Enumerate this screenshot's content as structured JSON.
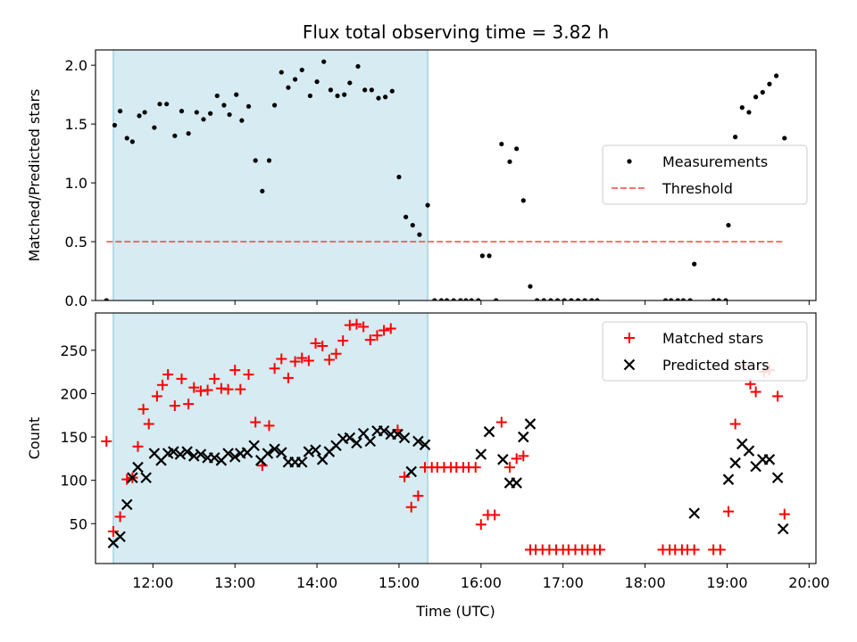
{
  "chart_data": [
    {
      "type": "scatter",
      "title": "Flux total observing time = 3.82 h",
      "xlabel": "",
      "ylabel": "Matched/Predicted stars",
      "x_range": [
        "11:18",
        "20:05"
      ],
      "ylim": [
        0,
        2.13
      ],
      "y_ticks": [
        "0.0",
        "0.5",
        "1.0",
        "1.5",
        "2.0"
      ],
      "x_ticks": [
        "12:00",
        "13:00",
        "14:00",
        "15:00",
        "16:00",
        "17:00",
        "18:00",
        "19:00",
        "20:00"
      ],
      "x_ticklabels_visible": false,
      "shaded_interval": {
        "start": "11:31",
        "end": "15:21"
      },
      "legend": {
        "position": "center-right",
        "entries": [
          "Measurements",
          "Threshold"
        ]
      },
      "threshold": {
        "name": "Threshold",
        "value": 0.5,
        "x_start": "11:26",
        "x_end": "19:41"
      },
      "series": [
        {
          "name": "Measurements",
          "points": [
            [
              "11:26",
              0.0
            ],
            [
              "11:32",
              1.49
            ],
            [
              "11:36",
              1.61
            ],
            [
              "11:41",
              1.38
            ],
            [
              "11:45",
              1.35
            ],
            [
              "11:50",
              1.57
            ],
            [
              "11:54",
              1.6
            ],
            [
              "12:01",
              1.47
            ],
            [
              "12:05",
              1.67
            ],
            [
              "12:10",
              1.67
            ],
            [
              "12:16",
              1.4
            ],
            [
              "12:21",
              1.61
            ],
            [
              "12:26",
              1.42
            ],
            [
              "12:32",
              1.6
            ],
            [
              "12:37",
              1.54
            ],
            [
              "12:42",
              1.59
            ],
            [
              "12:47",
              1.74
            ],
            [
              "12:52",
              1.66
            ],
            [
              "12:56",
              1.58
            ],
            [
              "13:01",
              1.75
            ],
            [
              "13:05",
              1.53
            ],
            [
              "13:10",
              1.65
            ],
            [
              "13:15",
              1.19
            ],
            [
              "13:20",
              0.93
            ],
            [
              "13:25",
              1.19
            ],
            [
              "13:29",
              1.66
            ],
            [
              "13:34",
              1.94
            ],
            [
              "13:39",
              1.81
            ],
            [
              "13:44",
              1.88
            ],
            [
              "13:49",
              1.96
            ],
            [
              "13:55",
              1.74
            ],
            [
              "14:00",
              1.86
            ],
            [
              "14:05",
              2.03
            ],
            [
              "14:10",
              1.79
            ],
            [
              "14:15",
              1.74
            ],
            [
              "14:20",
              1.75
            ],
            [
              "14:24",
              1.85
            ],
            [
              "14:30",
              1.99
            ],
            [
              "14:35",
              1.79
            ],
            [
              "14:40",
              1.79
            ],
            [
              "14:45",
              1.72
            ],
            [
              "14:50",
              1.73
            ],
            [
              "14:55",
              1.78
            ],
            [
              "15:00",
              1.05
            ],
            [
              "15:05",
              0.71
            ],
            [
              "15:10",
              0.64
            ],
            [
              "15:15",
              0.56
            ],
            [
              "15:21",
              0.81
            ],
            [
              "15:26",
              0.0
            ],
            [
              "15:31",
              0.0
            ],
            [
              "15:35",
              0.0
            ],
            [
              "15:40",
              0.0
            ],
            [
              "15:45",
              0.0
            ],
            [
              "15:49",
              0.0
            ],
            [
              "15:53",
              0.0
            ],
            [
              "15:58",
              0.0
            ],
            [
              "16:01",
              0.38
            ],
            [
              "16:06",
              0.38
            ],
            [
              "16:11",
              0.0
            ],
            [
              "16:15",
              1.33
            ],
            [
              "16:21",
              1.18
            ],
            [
              "16:26",
              1.29
            ],
            [
              "16:31",
              0.85
            ],
            [
              "16:36",
              0.12
            ],
            [
              "16:41",
              0.0
            ],
            [
              "16:46",
              0.0
            ],
            [
              "16:51",
              0.0
            ],
            [
              "16:56",
              0.0
            ],
            [
              "17:01",
              0.0
            ],
            [
              "17:06",
              0.0
            ],
            [
              "17:11",
              0.0
            ],
            [
              "17:16",
              0.0
            ],
            [
              "17:21",
              0.0
            ],
            [
              "17:25",
              0.0
            ],
            [
              "18:15",
              0.0
            ],
            [
              "18:19",
              0.0
            ],
            [
              "18:24",
              0.0
            ],
            [
              "18:28",
              0.0
            ],
            [
              "18:33",
              0.0
            ],
            [
              "18:36",
              0.31
            ],
            [
              "18:50",
              0.0
            ],
            [
              "18:54",
              0.0
            ],
            [
              "18:59",
              0.0
            ],
            [
              "19:01",
              0.64
            ],
            [
              "19:06",
              1.39
            ],
            [
              "19:11",
              1.64
            ],
            [
              "19:16",
              1.6
            ],
            [
              "19:21",
              1.73
            ],
            [
              "19:26",
              1.77
            ],
            [
              "19:31",
              1.84
            ],
            [
              "19:36",
              1.91
            ],
            [
              "19:42",
              1.38
            ]
          ]
        }
      ]
    },
    {
      "type": "scatter",
      "title": "",
      "xlabel": "Time (UTC)",
      "ylabel": "Count",
      "x_range": [
        "11:18",
        "20:05"
      ],
      "ylim": [
        4,
        293
      ],
      "y_ticks": [
        "50",
        "100",
        "150",
        "200",
        "250"
      ],
      "x_ticks": [
        "12:00",
        "13:00",
        "14:00",
        "15:00",
        "16:00",
        "17:00",
        "18:00",
        "19:00",
        "20:00"
      ],
      "shaded_interval": {
        "start": "11:31",
        "end": "15:21"
      },
      "legend": {
        "position": "top-right",
        "entries": [
          "Matched stars",
          "Predicted stars"
        ]
      },
      "series": [
        {
          "name": "Matched stars",
          "color": "#ff0000",
          "marker": "plus",
          "points": [
            [
              "11:26",
              145
            ],
            [
              "11:31",
              41
            ],
            [
              "11:36",
              58
            ],
            [
              "11:41",
              101
            ],
            [
              "11:45",
              103
            ],
            [
              "11:49",
              139
            ],
            [
              "11:53",
              182
            ],
            [
              "11:57",
              165
            ],
            [
              "12:03",
              197
            ],
            [
              "12:07",
              210
            ],
            [
              "12:11",
              222
            ],
            [
              "12:16",
              186
            ],
            [
              "12:21",
              217
            ],
            [
              "12:26",
              188
            ],
            [
              "12:30",
              207
            ],
            [
              "12:35",
              203
            ],
            [
              "12:40",
              204
            ],
            [
              "12:45",
              217
            ],
            [
              "12:50",
              206
            ],
            [
              "12:55",
              205
            ],
            [
              "13:00",
              227
            ],
            [
              "13:04",
              205
            ],
            [
              "13:10",
              222
            ],
            [
              "13:15",
              167
            ],
            [
              "13:20",
              117
            ],
            [
              "13:25",
              163
            ],
            [
              "13:29",
              229
            ],
            [
              "13:34",
              240
            ],
            [
              "13:39",
              218
            ],
            [
              "13:44",
              237
            ],
            [
              "13:49",
              241
            ],
            [
              "13:54",
              238
            ],
            [
              "13:59",
              258
            ],
            [
              "14:04",
              255
            ],
            [
              "14:09",
              239
            ],
            [
              "14:14",
              246
            ],
            [
              "14:19",
              261
            ],
            [
              "14:24",
              279
            ],
            [
              "14:29",
              280
            ],
            [
              "14:34",
              277
            ],
            [
              "14:39",
              262
            ],
            [
              "14:44",
              267
            ],
            [
              "14:49",
              273
            ],
            [
              "14:54",
              275
            ],
            [
              "14:59",
              158
            ],
            [
              "15:04",
              104
            ],
            [
              "15:09",
              69
            ],
            [
              "15:14",
              82
            ],
            [
              "15:19",
              115
            ],
            [
              "15:24",
              115
            ],
            [
              "15:28",
              115
            ],
            [
              "15:33",
              115
            ],
            [
              "15:38",
              115
            ],
            [
              "15:42",
              115
            ],
            [
              "15:47",
              115
            ],
            [
              "15:51",
              115
            ],
            [
              "15:56",
              115
            ],
            [
              "16:00",
              49
            ],
            [
              "16:05",
              60
            ],
            [
              "16:10",
              60
            ],
            [
              "16:15",
              167
            ],
            [
              "16:21",
              115
            ],
            [
              "16:26",
              125
            ],
            [
              "16:31",
              128
            ],
            [
              "16:36",
              20
            ],
            [
              "16:40",
              20
            ],
            [
              "16:45",
              20
            ],
            [
              "16:50",
              20
            ],
            [
              "16:55",
              20
            ],
            [
              "17:00",
              20
            ],
            [
              "17:04",
              20
            ],
            [
              "17:09",
              20
            ],
            [
              "17:14",
              20
            ],
            [
              "17:18",
              20
            ],
            [
              "17:23",
              20
            ],
            [
              "17:27",
              20
            ],
            [
              "18:13",
              20
            ],
            [
              "18:18",
              20
            ],
            [
              "18:22",
              20
            ],
            [
              "18:27",
              20
            ],
            [
              "18:31",
              20
            ],
            [
              "18:36",
              20
            ],
            [
              "18:50",
              20
            ],
            [
              "18:55",
              20
            ],
            [
              "19:01",
              64
            ],
            [
              "19:06",
              165
            ],
            [
              "19:12",
              232
            ],
            [
              "19:17",
              211
            ],
            [
              "19:21",
              202
            ],
            [
              "19:27",
              225
            ],
            [
              "19:31",
              227
            ],
            [
              "19:37",
              197
            ],
            [
              "19:42",
              61
            ]
          ]
        },
        {
          "name": "Predicted stars",
          "color": "#000000",
          "marker": "x",
          "points": [
            [
              "11:31",
              28
            ],
            [
              "11:36",
              35
            ],
            [
              "11:41",
              72
            ],
            [
              "11:45",
              103
            ],
            [
              "11:49",
              115
            ],
            [
              "11:55",
              103
            ],
            [
              "12:01",
              131
            ],
            [
              "12:06",
              123
            ],
            [
              "12:11",
              131
            ],
            [
              "12:15",
              133
            ],
            [
              "12:20",
              130
            ],
            [
              "12:25",
              133
            ],
            [
              "12:30",
              128
            ],
            [
              "12:35",
              130
            ],
            [
              "12:40",
              126
            ],
            [
              "12:45",
              126
            ],
            [
              "12:50",
              123
            ],
            [
              "12:55",
              131
            ],
            [
              "13:00",
              127
            ],
            [
              "13:04",
              131
            ],
            [
              "13:09",
              132
            ],
            [
              "13:14",
              140
            ],
            [
              "13:19",
              123
            ],
            [
              "13:24",
              131
            ],
            [
              "13:29",
              136
            ],
            [
              "13:34",
              132
            ],
            [
              "13:39",
              121
            ],
            [
              "13:44",
              121
            ],
            [
              "13:49",
              121
            ],
            [
              "13:54",
              133
            ],
            [
              "13:59",
              135
            ],
            [
              "14:04",
              124
            ],
            [
              "14:09",
              133
            ],
            [
              "14:14",
              140
            ],
            [
              "14:19",
              148
            ],
            [
              "14:24",
              149
            ],
            [
              "14:29",
              143
            ],
            [
              "14:34",
              154
            ],
            [
              "14:39",
              145
            ],
            [
              "14:44",
              157
            ],
            [
              "14:49",
              157
            ],
            [
              "14:54",
              153
            ],
            [
              "14:59",
              153
            ],
            [
              "15:04",
              149
            ],
            [
              "15:09",
              110
            ],
            [
              "15:14",
              145
            ],
            [
              "15:19",
              141
            ],
            [
              "16:00",
              130
            ],
            [
              "16:06",
              156
            ],
            [
              "16:16",
              124
            ],
            [
              "16:21",
              97
            ],
            [
              "16:26",
              97
            ],
            [
              "16:31",
              150
            ],
            [
              "16:36",
              165
            ],
            [
              "18:36",
              62
            ],
            [
              "19:01",
              101
            ],
            [
              "19:06",
              120
            ],
            [
              "19:11",
              142
            ],
            [
              "19:16",
              134
            ],
            [
              "19:21",
              116
            ],
            [
              "19:26",
              124
            ],
            [
              "19:31",
              124
            ],
            [
              "19:37",
              103
            ],
            [
              "19:41",
              44
            ]
          ]
        }
      ]
    }
  ]
}
